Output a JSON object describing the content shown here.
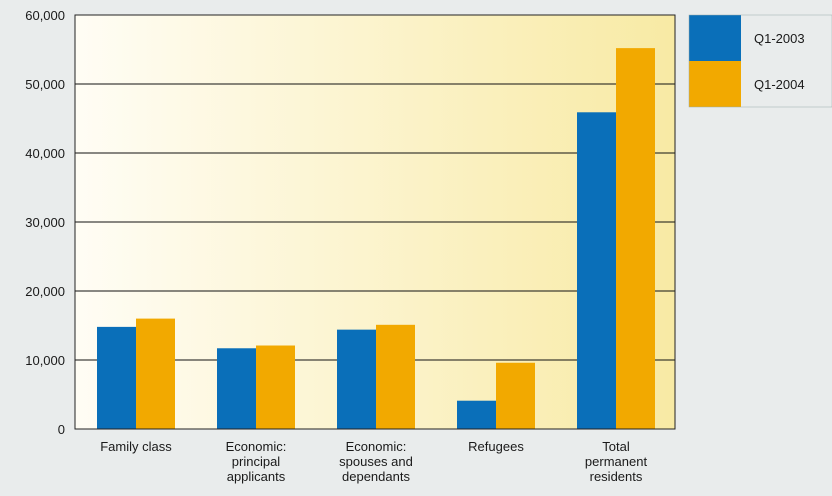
{
  "chart_data": {
    "type": "bar",
    "categories": [
      [
        "Family class"
      ],
      [
        "Economic:",
        "principal",
        "applicants"
      ],
      [
        "Economic:",
        "spouses and",
        "dependants"
      ],
      [
        "Refugees"
      ],
      [
        "Total",
        "permanent",
        "residents"
      ]
    ],
    "series": [
      {
        "name": "Q1-2003",
        "color": "#0a6fb9",
        "values": [
          14800,
          11700,
          14400,
          4100,
          45900
        ]
      },
      {
        "name": "Q1-2004",
        "color": "#f2a900",
        "values": [
          16000,
          12100,
          15100,
          9600,
          55200
        ]
      }
    ],
    "yticks": [
      "0",
      "10,000",
      "20,000",
      "30,000",
      "40,000",
      "50,000",
      "60,000"
    ],
    "ylim": [
      0,
      60000
    ],
    "grid": true,
    "legend": "top-right",
    "plot_background": [
      "#fffdf5",
      "#f8eaa4"
    ]
  }
}
